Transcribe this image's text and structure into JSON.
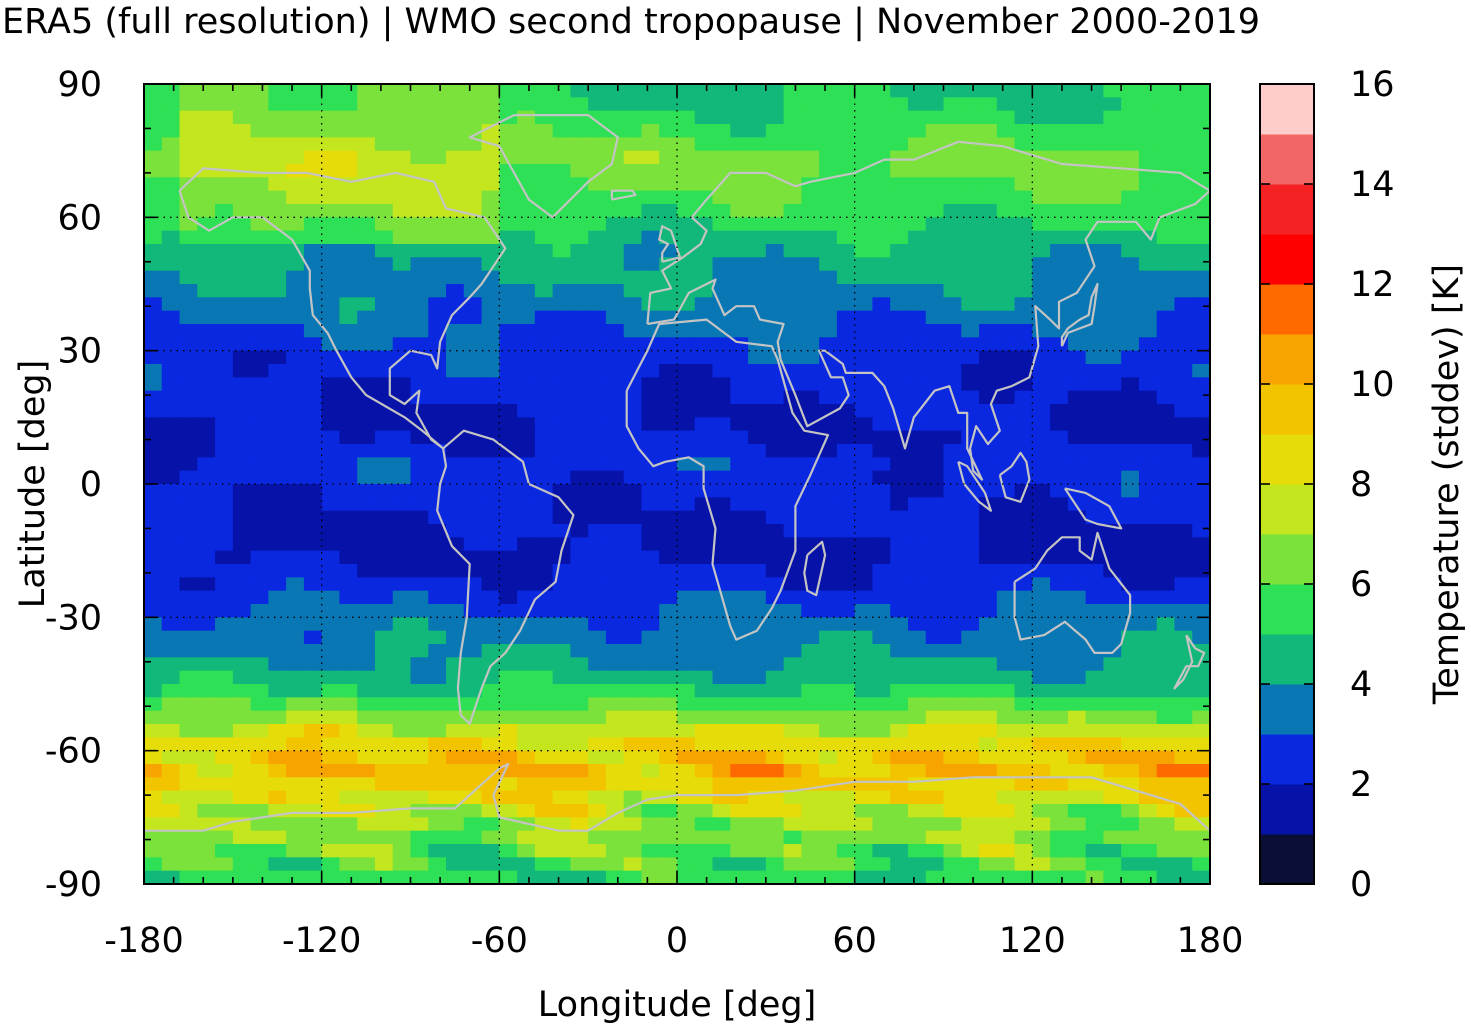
{
  "title": "ERA5 (full resolution) | WMO second tropopause | November 2000-2019",
  "x_axis": {
    "label": "Longitude [deg]",
    "min": -180,
    "max": 180,
    "ticks": [
      -180,
      -120,
      -60,
      0,
      60,
      120,
      180
    ],
    "tick_labels": [
      "-180",
      "-120",
      "-60",
      "0",
      "60",
      "120",
      "180"
    ]
  },
  "y_axis": {
    "label": "Latitude [deg]",
    "min": -90,
    "max": 90,
    "ticks": [
      90,
      60,
      30,
      0,
      -30,
      -60,
      -90
    ],
    "tick_labels": [
      "90",
      "60",
      "30",
      "0",
      "-30",
      "-60",
      "-90"
    ]
  },
  "grid": "dotted",
  "colorbar": {
    "label": "Temperature (stddev) [K]",
    "min": 0,
    "max": 16,
    "step": 1,
    "tick_labels": [
      "0",
      "2",
      "4",
      "6",
      "8",
      "10",
      "12",
      "14",
      "16"
    ],
    "colors": [
      "#0b0e35",
      "#0612a8",
      "#0a28e0",
      "#0877b4",
      "#12b87a",
      "#2ee055",
      "#7ae23a",
      "#c4e61e",
      "#e6dc0a",
      "#f2c400",
      "#f8a400",
      "#ff6a00",
      "#ff0000",
      "#f42222",
      "#f26666",
      "#ffcccc"
    ]
  },
  "chart_data": {
    "type": "heatmap",
    "title": "ERA5 (full resolution) | WMO second tropopause | November 2000-2019",
    "xlabel": "Longitude [deg]",
    "ylabel": "Latitude [deg]",
    "xlim": [
      -180,
      180
    ],
    "ylim": [
      -90,
      90
    ],
    "colorbar_label": "Temperature (stddev) [K]",
    "colorbar_range": [
      0,
      16
    ],
    "zonal_profile_approx": [
      {
        "lat": 85,
        "value": 5.0
      },
      {
        "lat": 72,
        "value": 6.5
      },
      {
        "lat": 62,
        "value": 5.5
      },
      {
        "lat": 52,
        "value": 4.3
      },
      {
        "lat": 40,
        "value": 3.5
      },
      {
        "lat": 30,
        "value": 2.6
      },
      {
        "lat": 20,
        "value": 2.2
      },
      {
        "lat": 12,
        "value": 1.8
      },
      {
        "lat": 5,
        "value": 2.5
      },
      {
        "lat": -5,
        "value": 2.2
      },
      {
        "lat": -15,
        "value": 1.7
      },
      {
        "lat": -22,
        "value": 2.3
      },
      {
        "lat": -30,
        "value": 3.3
      },
      {
        "lat": -38,
        "value": 3.8
      },
      {
        "lat": -45,
        "value": 4.6
      },
      {
        "lat": -52,
        "value": 6.5
      },
      {
        "lat": -58,
        "value": 8.5
      },
      {
        "lat": -64,
        "value": 9.8
      },
      {
        "lat": -70,
        "value": 8.5
      },
      {
        "lat": -75,
        "value": 7.0
      },
      {
        "lat": -82,
        "value": 6.3
      },
      {
        "lat": -88,
        "value": 5.3
      }
    ]
  }
}
